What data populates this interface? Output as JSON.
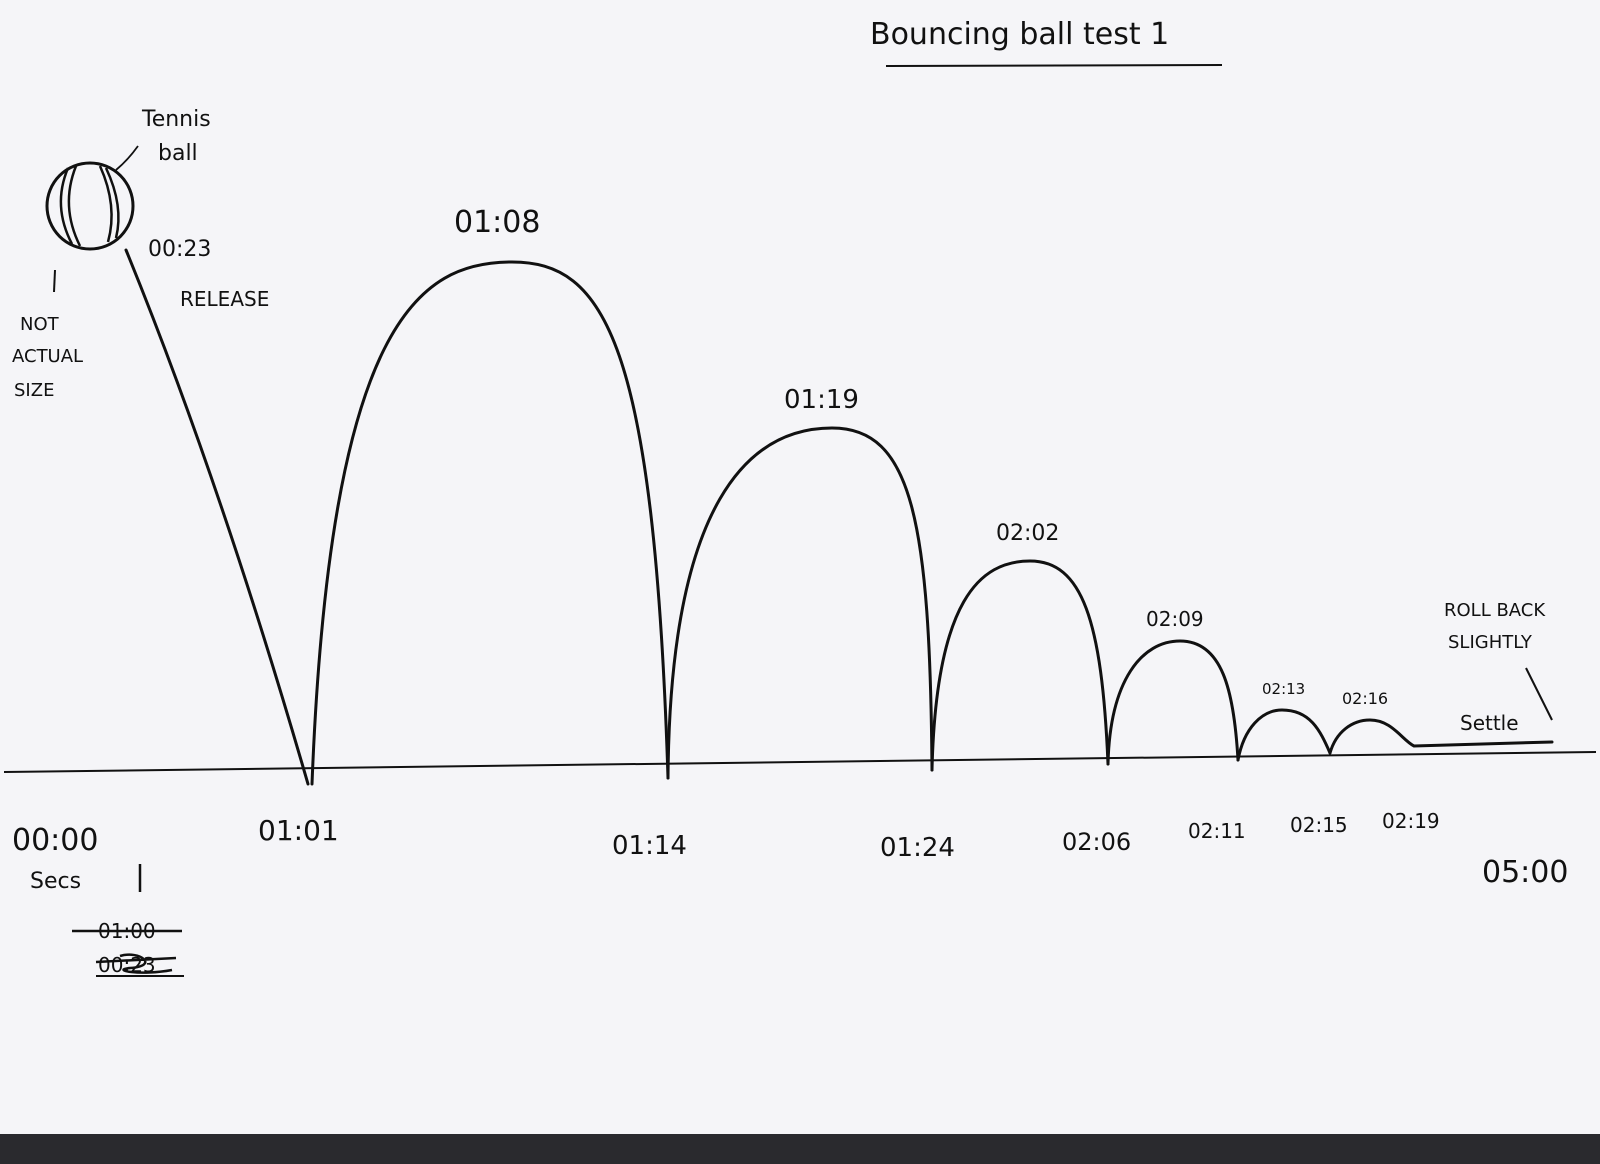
{
  "title": "Bouncing ball test 1",
  "ball_label": "Tennis ball",
  "note": [
    "NOT",
    "ACTUAL",
    "SIZE"
  ],
  "release": {
    "time": "00:23",
    "label": "RELEASE"
  },
  "peaks": [
    "01:08",
    "01:19",
    "02:02",
    "02:09",
    "02:13",
    "02:16"
  ],
  "contacts": [
    "01:01",
    "01:14",
    "01:24",
    "02:06",
    "02:11",
    "02:15",
    "02:19"
  ],
  "start_time": "00:00",
  "units": "Secs",
  "crossed_out": [
    "01:00",
    "00:23"
  ],
  "end_time": "05:00",
  "roll_back": [
    "ROLL BACK",
    "SLIGHTLY"
  ],
  "settle": "Settle",
  "colors": {
    "ink": "#111111",
    "paper": "#f5f5f8"
  }
}
